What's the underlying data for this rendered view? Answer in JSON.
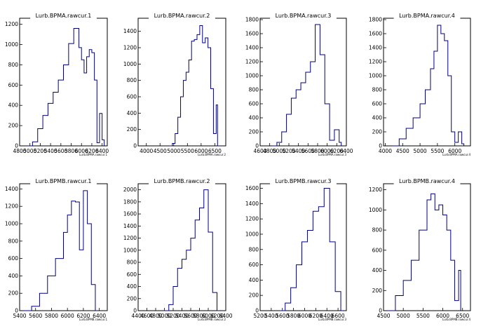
{
  "colors": {
    "line": "#00007f",
    "axis": "#000000",
    "background": "#ffffff"
  },
  "chart_data": [
    {
      "type": "line",
      "title": "Lurb.BPMA.rawcur.1",
      "xaxis_label": "Lurb.BPMA.rawcur.1",
      "xlim": [
        4800,
        6500
      ],
      "ylim": [
        0,
        1260
      ],
      "xticks": [
        4800,
        5000,
        5200,
        5400,
        5600,
        5800,
        6000,
        6200,
        6400
      ],
      "xtick_labels": [
        "4800",
        "5000",
        "5200",
        "5400",
        "5600",
        "5800",
        "6000",
        "6200",
        "6400"
      ],
      "yticks": [
        0,
        200,
        400,
        600,
        800,
        1000,
        1200
      ],
      "ytick_labels": [
        "0",
        "200",
        "400",
        "600",
        "800",
        "1000",
        "1200"
      ],
      "x": [
        4950,
        5050,
        5150,
        5250,
        5350,
        5450,
        5550,
        5650,
        5750,
        5850,
        5950,
        6000,
        6050,
        6100,
        6150,
        6200,
        6250,
        6300,
        6350,
        6400
      ],
      "y": [
        0,
        40,
        170,
        300,
        420,
        530,
        650,
        800,
        1010,
        1160,
        970,
        850,
        720,
        880,
        950,
        920,
        650,
        30,
        320,
        60
      ]
    },
    {
      "type": "line",
      "title": "Lurb.BPMA.rawcur.2",
      "xaxis_label": "Lurb.BPMA.rawcur.2",
      "xlim": [
        3700,
        6900
      ],
      "ylim": [
        0,
        1560
      ],
      "xticks": [
        4000,
        4500,
        5000,
        5500,
        6000,
        6500
      ],
      "xtick_labels": [
        "4000",
        "4500",
        "5000",
        "5500",
        "6000",
        "6500"
      ],
      "yticks": [
        0,
        200,
        400,
        600,
        800,
        1000,
        1200,
        1400
      ],
      "ytick_labels": [
        "0",
        "200",
        "400",
        "600",
        "800",
        "1000",
        "1200",
        "1400"
      ],
      "x": [
        4850,
        4950,
        5050,
        5150,
        5250,
        5350,
        5450,
        5550,
        5650,
        5750,
        5850,
        5950,
        6050,
        6150,
        6250,
        6350,
        6450,
        6550,
        6600
      ],
      "y": [
        0,
        30,
        150,
        350,
        600,
        800,
        900,
        1050,
        1280,
        1300,
        1360,
        1470,
        1260,
        1320,
        1200,
        700,
        150,
        500,
        0
      ]
    },
    {
      "type": "line",
      "title": "Lurb.BPMA.rawcur.3",
      "xaxis_label": "Lurb.BPMA.rawcur.3",
      "xlim": [
        4600,
        6400
      ],
      "ylim": [
        0,
        1820
      ],
      "xticks": [
        4600,
        4800,
        5000,
        5200,
        5400,
        5600,
        5800,
        6000,
        6200,
        6400
      ],
      "xtick_labels": [
        "4600",
        "4800",
        "5000",
        "5200",
        "5400",
        "5600",
        "5800",
        "6000",
        "6200",
        "6400"
      ],
      "yticks": [
        0,
        200,
        400,
        600,
        800,
        1000,
        1200,
        1400,
        1600,
        1800
      ],
      "ytick_labels": [
        "0",
        "200",
        "400",
        "600",
        "800",
        "1000",
        "1200",
        "1400",
        "1600",
        "1800"
      ],
      "x": [
        4850,
        4950,
        5050,
        5150,
        5250,
        5350,
        5450,
        5550,
        5650,
        5750,
        5850,
        5950,
        6050,
        6150,
        6250
      ],
      "y": [
        0,
        50,
        200,
        450,
        680,
        800,
        900,
        1050,
        1200,
        1730,
        1300,
        600,
        80,
        230,
        50
      ]
    },
    {
      "type": "line",
      "title": "Lurb.BPMA.rawcur.4",
      "xaxis_label": "Lurb.BPMA.rawcur.4",
      "xlim": [
        3950,
        6450
      ],
      "ylim": [
        0,
        1820
      ],
      "xticks": [
        4000,
        4500,
        5000,
        5500,
        6000
      ],
      "xtick_labels": [
        "4000",
        "4500",
        "5000",
        "5500",
        "6000"
      ],
      "yticks": [
        0,
        200,
        400,
        600,
        800,
        1000,
        1200,
        1400,
        1600,
        1800
      ],
      "ytick_labels": [
        "0",
        "200",
        "400",
        "600",
        "800",
        "1000",
        "1200",
        "1400",
        "1600",
        "1800"
      ],
      "x": [
        4200,
        4400,
        4600,
        4800,
        5000,
        5150,
        5300,
        5400,
        5500,
        5600,
        5700,
        5800,
        5900,
        6000,
        6100,
        6200
      ],
      "y": [
        0,
        100,
        250,
        400,
        600,
        800,
        1100,
        1350,
        1720,
        1600,
        1500,
        1000,
        200,
        50,
        200,
        30
      ]
    },
    {
      "type": "line",
      "title": "Lurb.BPMB.rawcur.1",
      "xaxis_label": "Lurb.BPMB.rawcur.1",
      "xlim": [
        5400,
        6500
      ],
      "ylim": [
        0,
        1460
      ],
      "xticks": [
        5400,
        5600,
        5800,
        6000,
        6200,
        6400
      ],
      "xtick_labels": [
        "5400",
        "5600",
        "5800",
        "6000",
        "6200",
        "6400"
      ],
      "yticks": [
        0,
        200,
        400,
        600,
        800,
        1000,
        1200,
        1400
      ],
      "ytick_labels": [
        "0",
        "200",
        "400",
        "600",
        "800",
        "1000",
        "1200",
        "1400"
      ],
      "x": [
        5450,
        5550,
        5650,
        5750,
        5850,
        5950,
        6000,
        6050,
        6100,
        6150,
        6200,
        6250,
        6300,
        6350
      ],
      "y": [
        0,
        50,
        200,
        400,
        600,
        900,
        1100,
        1260,
        1250,
        700,
        1380,
        1000,
        300,
        0
      ]
    },
    {
      "type": "line",
      "title": "Lurb.BPMB.rawcur.2",
      "xaxis_label": "Lurb.BPMB.rawcur.2",
      "xlim": [
        4400,
        6400
      ],
      "ylim": [
        0,
        2100
      ],
      "xticks": [
        4400,
        4600,
        4800,
        5000,
        5200,
        5400,
        5600,
        5800,
        6000,
        6200,
        6400
      ],
      "xtick_labels": [
        "4400",
        "4600",
        "4800",
        "5000",
        "5200",
        "5400",
        "5600",
        "5800",
        "6000",
        "6200",
        "6400"
      ],
      "yticks": [
        0,
        200,
        400,
        600,
        800,
        1000,
        1200,
        1400,
        1600,
        1800,
        2000
      ],
      "ytick_labels": [
        "0",
        "200",
        "400",
        "600",
        "800",
        "1000",
        "1200",
        "1400",
        "1600",
        "1800",
        "2000"
      ],
      "x": [
        5000,
        5100,
        5200,
        5300,
        5400,
        5500,
        5600,
        5700,
        5800,
        5900,
        6000,
        6100,
        6200
      ],
      "y": [
        0,
        100,
        400,
        700,
        850,
        1000,
        1200,
        1500,
        1700,
        2000,
        1300,
        300,
        0
      ]
    },
    {
      "type": "line",
      "title": "Lurb.BPMB.rawcur.3",
      "xaxis_label": "Lurb.BPMB.rawcur.3",
      "xlim": [
        5200,
        6750
      ],
      "ylim": [
        0,
        1660
      ],
      "xticks": [
        5200,
        5400,
        5600,
        5800,
        6000,
        6200,
        6400,
        6600
      ],
      "xtick_labels": [
        "5200",
        "5400",
        "5600",
        "5800",
        "6000",
        "6200",
        "6400",
        "6600"
      ],
      "yticks": [
        0,
        200,
        400,
        600,
        800,
        1000,
        1200,
        1400,
        1600
      ],
      "ytick_labels": [
        "0",
        "200",
        "400",
        "600",
        "800",
        "1000",
        "1200",
        "1400",
        "1600"
      ],
      "x": [
        5550,
        5650,
        5750,
        5850,
        5950,
        6050,
        6150,
        6250,
        6350,
        6450,
        6550,
        6650
      ],
      "y": [
        0,
        100,
        300,
        600,
        900,
        1050,
        1300,
        1360,
        1600,
        900,
        250,
        0
      ]
    },
    {
      "type": "line",
      "title": "Lurb.BPMB.rawcur.4",
      "xaxis_label": "Lurb.BPMB.rawcur.4",
      "xlim": [
        4500,
        6700
      ],
      "ylim": [
        0,
        1260
      ],
      "xticks": [
        4500,
        5000,
        5500,
        6000,
        6500
      ],
      "xtick_labels": [
        "4500",
        "5000",
        "5500",
        "6000",
        "6500"
      ],
      "yticks": [
        0,
        200,
        400,
        600,
        800,
        1000,
        1200
      ],
      "ytick_labels": [
        "0",
        "200",
        "400",
        "600",
        "800",
        "1000",
        "1200"
      ],
      "x": [
        4600,
        4800,
        5000,
        5200,
        5400,
        5600,
        5700,
        5800,
        5900,
        6000,
        6100,
        6200,
        6300,
        6400
      ],
      "y": [
        0,
        150,
        300,
        500,
        800,
        1100,
        1160,
        1000,
        1050,
        950,
        800,
        500,
        100,
        400
      ]
    }
  ]
}
